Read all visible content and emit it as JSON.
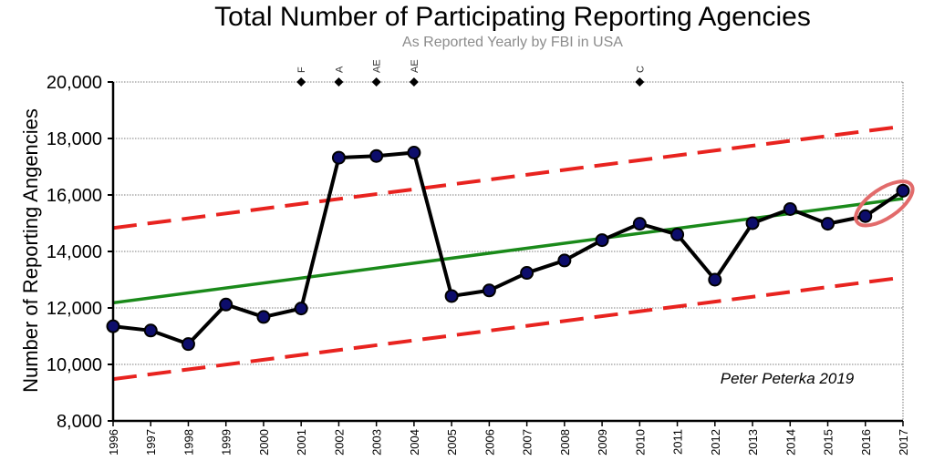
{
  "chart_data": {
    "type": "line",
    "title": "Total Number of Participating Reporting Agencies",
    "subtitle": "As Reported Yearly by FBI in USA",
    "xlabel": "",
    "ylabel": "Number of Reporting Angencies",
    "ylim": [
      8000,
      20000
    ],
    "yticks": [
      "8,000",
      "10,000",
      "12,000",
      "14,000",
      "16,000",
      "18,000",
      "20,000"
    ],
    "ytick_values": [
      8000,
      10000,
      12000,
      14000,
      16000,
      18000,
      20000
    ],
    "x": [
      "1996",
      "1997",
      "1998",
      "1999",
      "2000",
      "2001",
      "2002",
      "2003",
      "2004",
      "2005",
      "2006",
      "2007",
      "2008",
      "2009",
      "2010",
      "2011",
      "2012",
      "2013",
      "2014",
      "2015",
      "2016",
      "2017"
    ],
    "grid": true,
    "series": [
      {
        "values": [
          11350,
          11200,
          10720,
          12120,
          11680,
          11980,
          17320,
          17380,
          17500,
          12420,
          12620,
          13240,
          13680,
          14400,
          14980,
          14600,
          13000,
          15000,
          15500,
          14980,
          15250,
          16150
        ],
        "color": "#000000",
        "marker_color": "#0d0d6b"
      }
    ],
    "trend_line": {
      "start": [
        1996,
        12180
      ],
      "end": [
        2017,
        15870
      ],
      "color": "#1a8a1a"
    },
    "upper_bound": {
      "start": [
        1996,
        14830
      ],
      "end": [
        2017,
        18430
      ],
      "color": "#e8231f"
    },
    "lower_bound": {
      "start": [
        1996,
        9480
      ],
      "end": [
        2017,
        13080
      ],
      "color": "#e8231f"
    },
    "top_markers": [
      {
        "year": "2001",
        "label": "F"
      },
      {
        "year": "2002",
        "label": "A"
      },
      {
        "year": "2003",
        "label": "AE"
      },
      {
        "year": "2004",
        "label": "AE"
      },
      {
        "year": "2010",
        "label": "C"
      }
    ],
    "highlight_years": [
      "2016",
      "2017"
    ],
    "annotation": "Peter Peterka 2019"
  }
}
